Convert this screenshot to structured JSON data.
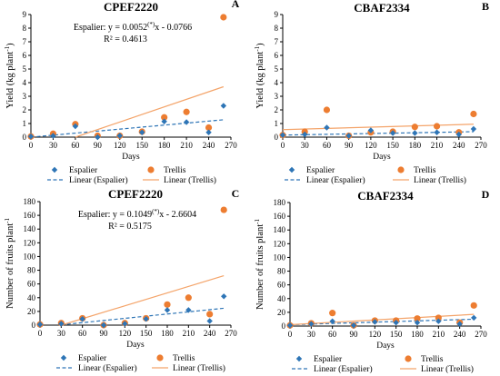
{
  "colors": {
    "espalier": "#2e75b6",
    "trellis": "#ed7d31",
    "trend_espalier": "#2e75b6",
    "trend_trellis": "#f4a46a"
  },
  "legend": {
    "espalier": "Espalier",
    "trellis": "Trellis",
    "linear_espalier": "Linear (Espalier)",
    "linear_trellis": "Linear (Trellis)"
  },
  "chart_data": [
    {
      "id": "A",
      "type": "scatter",
      "title": "CPEF2220",
      "letter": "A",
      "xlabel": "Days",
      "ylabel": "Yield (kg plant",
      "ylabel_sup": "-1",
      "ylabel_end": ")",
      "xlim": [
        0,
        270
      ],
      "ylim": [
        0,
        9
      ],
      "xticks": [
        0,
        30,
        60,
        90,
        120,
        150,
        180,
        210,
        240,
        270
      ],
      "yticks": [
        0,
        1,
        2,
        3,
        4,
        5,
        6,
        7,
        8,
        9
      ],
      "equation": "Espalier: y = 0.0052",
      "equation_sup": "(*)",
      "equation_end": "x - 0.0766",
      "r2": "R² = 0.4613",
      "trend_espalier": {
        "slope": 0.0052,
        "intercept": -0.0766,
        "x": [
          0,
          260
        ]
      },
      "trend_trellis": {
        "x": [
          60,
          260
        ],
        "y": [
          0.0,
          3.7
        ]
      },
      "series": [
        {
          "name": "Espalier",
          "x": [
            0,
            30,
            60,
            90,
            120,
            150,
            180,
            210,
            240,
            260
          ],
          "y": [
            0.05,
            0.1,
            0.8,
            0.0,
            0.1,
            0.35,
            1.15,
            1.1,
            0.35,
            2.3
          ]
        },
        {
          "name": "Trellis",
          "x": [
            0,
            30,
            60,
            90,
            120,
            150,
            180,
            210,
            240,
            260
          ],
          "y": [
            0.05,
            0.25,
            0.95,
            0.1,
            0.1,
            0.4,
            1.45,
            1.85,
            0.7,
            8.8
          ]
        }
      ]
    },
    {
      "id": "B",
      "type": "scatter",
      "title": "CBAF2334",
      "letter": "B",
      "xlabel": "Days",
      "ylabel": "Yield (kg plant",
      "ylabel_sup": "-1",
      "ylabel_end": ")",
      "xlim": [
        0,
        270
      ],
      "ylim": [
        0,
        9
      ],
      "xticks": [
        0,
        30,
        60,
        90,
        120,
        150,
        180,
        210,
        240,
        270
      ],
      "yticks": [
        0,
        1,
        2,
        3,
        4,
        5,
        6,
        7,
        8,
        9
      ],
      "trend_espalier": {
        "x": [
          0,
          260
        ],
        "y": [
          0.15,
          0.4
        ]
      },
      "trend_trellis": {
        "x": [
          0,
          260
        ],
        "y": [
          0.55,
          0.95
        ]
      },
      "series": [
        {
          "name": "Espalier",
          "x": [
            0,
            30,
            60,
            90,
            120,
            150,
            180,
            210,
            240,
            260
          ],
          "y": [
            0.15,
            0.2,
            0.7,
            0.1,
            0.5,
            0.3,
            0.3,
            0.35,
            0.2,
            0.6
          ]
        },
        {
          "name": "Trellis",
          "x": [
            0,
            30,
            60,
            90,
            120,
            150,
            180,
            210,
            240,
            260
          ],
          "y": [
            0.15,
            0.4,
            2.0,
            0.1,
            0.35,
            0.4,
            0.75,
            0.8,
            0.35,
            1.7
          ]
        }
      ]
    },
    {
      "id": "C",
      "type": "scatter",
      "title": "CPEF2220",
      "letter": "C",
      "xlabel": "Days",
      "ylabel": "Number of fruits plant",
      "ylabel_sup": "-1",
      "ylabel_end": "",
      "xlim": [
        0,
        270
      ],
      "ylim": [
        0,
        180
      ],
      "xticks": [
        0,
        30,
        60,
        90,
        120,
        150,
        180,
        210,
        240,
        270
      ],
      "yticks": [
        0,
        20,
        40,
        60,
        80,
        100,
        120,
        140,
        160,
        180
      ],
      "equation": "Espalier: y = 0.1049",
      "equation_sup": "(*)",
      "equation_end": "x - 2.6604",
      "r2": "R² = 0.5175",
      "trend_espalier": {
        "slope": 0.1049,
        "intercept": -2.6604,
        "x": [
          30,
          260
        ]
      },
      "trend_trellis": {
        "x": [
          30,
          260
        ],
        "y": [
          0.0,
          72.0
        ]
      },
      "series": [
        {
          "name": "Espalier",
          "x": [
            0,
            30,
            60,
            90,
            120,
            150,
            180,
            210,
            240,
            260
          ],
          "y": [
            1,
            2,
            9,
            0,
            2,
            9,
            22,
            22,
            6,
            42
          ]
        },
        {
          "name": "Trellis",
          "x": [
            0,
            30,
            60,
            90,
            120,
            150,
            180,
            210,
            240,
            260
          ],
          "y": [
            1,
            3,
            10,
            0,
            3,
            10,
            30,
            40,
            16,
            168
          ]
        }
      ]
    },
    {
      "id": "D",
      "type": "scatter",
      "title": "CBAF2334",
      "letter": "D",
      "xlabel": "Days",
      "ylabel": "Number of fruits plant",
      "ylabel_sup": "-1",
      "ylabel_end": "",
      "xlim": [
        0,
        270
      ],
      "ylim": [
        0,
        180
      ],
      "xticks": [
        0,
        30,
        60,
        90,
        120,
        150,
        180,
        210,
        240,
        270
      ],
      "yticks": [
        0,
        20,
        40,
        60,
        80,
        100,
        120,
        140,
        160,
        180
      ],
      "trend_espalier": {
        "x": [
          0,
          260
        ],
        "y": [
          2,
          10
        ]
      },
      "trend_trellis": {
        "x": [
          0,
          260
        ],
        "y": [
          2,
          17
        ]
      },
      "series": [
        {
          "name": "Espalier",
          "x": [
            0,
            30,
            60,
            90,
            120,
            150,
            180,
            210,
            240,
            260
          ],
          "y": [
            1,
            3,
            7,
            1,
            6,
            5,
            5,
            7,
            3,
            12
          ]
        },
        {
          "name": "Trellis",
          "x": [
            0,
            30,
            60,
            90,
            120,
            150,
            180,
            210,
            240,
            260
          ],
          "y": [
            1,
            4,
            19,
            1,
            8,
            8,
            11,
            12,
            5,
            30
          ]
        }
      ]
    }
  ]
}
